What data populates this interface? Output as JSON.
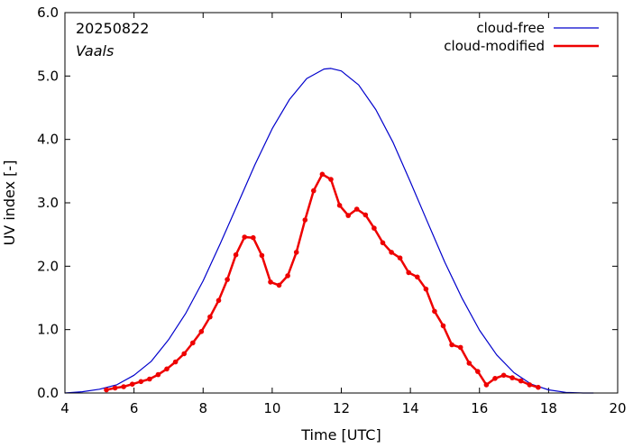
{
  "chart_data": {
    "type": "line",
    "xlabel": "Time  [UTC]",
    "ylabel": "UV index  [-]",
    "xlim": [
      4,
      20
    ],
    "ylim": [
      0,
      6
    ],
    "xticks": [
      4,
      6,
      8,
      10,
      12,
      14,
      16,
      18,
      20
    ],
    "yticks": [
      0,
      1,
      2,
      3,
      4,
      5,
      6
    ],
    "xtick_labels": [
      "4",
      "6",
      "8",
      "10",
      "12",
      "14",
      "16",
      "18",
      "20"
    ],
    "ytick_labels": [
      "0.0",
      "1.0",
      "2.0",
      "3.0",
      "4.0",
      "5.0",
      "6.0"
    ],
    "grid": false,
    "legend_position": "top-right",
    "annotations": {
      "date": "20250822",
      "location": "Vaals"
    },
    "series": [
      {
        "name": "cloud-free",
        "color": "#0000cc",
        "markers": false,
        "x": [
          4.0,
          4.5,
          5.0,
          5.5,
          6.0,
          6.5,
          7.0,
          7.5,
          8.0,
          8.5,
          9.0,
          9.5,
          10.0,
          10.5,
          11.0,
          11.5,
          11.7,
          12.0,
          12.5,
          13.0,
          13.5,
          14.0,
          14.5,
          15.0,
          15.5,
          16.0,
          16.5,
          17.0,
          17.5,
          18.0,
          18.5,
          19.0,
          19.3
        ],
        "y": [
          0.0,
          0.02,
          0.06,
          0.13,
          0.28,
          0.5,
          0.84,
          1.26,
          1.77,
          2.36,
          2.98,
          3.6,
          4.17,
          4.63,
          4.96,
          5.11,
          5.12,
          5.08,
          4.86,
          4.47,
          3.95,
          3.33,
          2.69,
          2.06,
          1.49,
          0.99,
          0.6,
          0.32,
          0.14,
          0.05,
          0.01,
          0.0,
          0.0
        ]
      },
      {
        "name": "cloud-modified",
        "color": "#ee0000",
        "markers": true,
        "x": [
          5.2,
          5.45,
          5.7,
          5.95,
          6.2,
          6.45,
          6.7,
          6.95,
          7.2,
          7.45,
          7.7,
          7.95,
          8.2,
          8.45,
          8.7,
          8.95,
          9.2,
          9.45,
          9.7,
          9.95,
          10.2,
          10.45,
          10.7,
          10.95,
          11.2,
          11.45,
          11.7,
          11.95,
          12.2,
          12.45,
          12.7,
          12.95,
          13.2,
          13.45,
          13.7,
          13.95,
          14.2,
          14.45,
          14.7,
          14.95,
          15.2,
          15.45,
          15.7,
          15.95,
          16.2,
          16.45,
          16.7,
          16.95,
          17.2,
          17.45,
          17.7
        ],
        "y": [
          0.05,
          0.08,
          0.1,
          0.14,
          0.18,
          0.22,
          0.29,
          0.38,
          0.49,
          0.62,
          0.79,
          0.97,
          1.2,
          1.46,
          1.79,
          2.18,
          2.46,
          2.45,
          2.17,
          1.75,
          1.7,
          1.85,
          2.22,
          2.73,
          3.19,
          3.45,
          3.37,
          2.96,
          2.8,
          2.9,
          2.81,
          2.6,
          2.37,
          2.22,
          2.13,
          1.9,
          1.83,
          1.64,
          1.29,
          1.06,
          0.76,
          0.72,
          0.47,
          0.34,
          0.13,
          0.23,
          0.28,
          0.24,
          0.19,
          0.13,
          0.09
        ]
      }
    ]
  }
}
